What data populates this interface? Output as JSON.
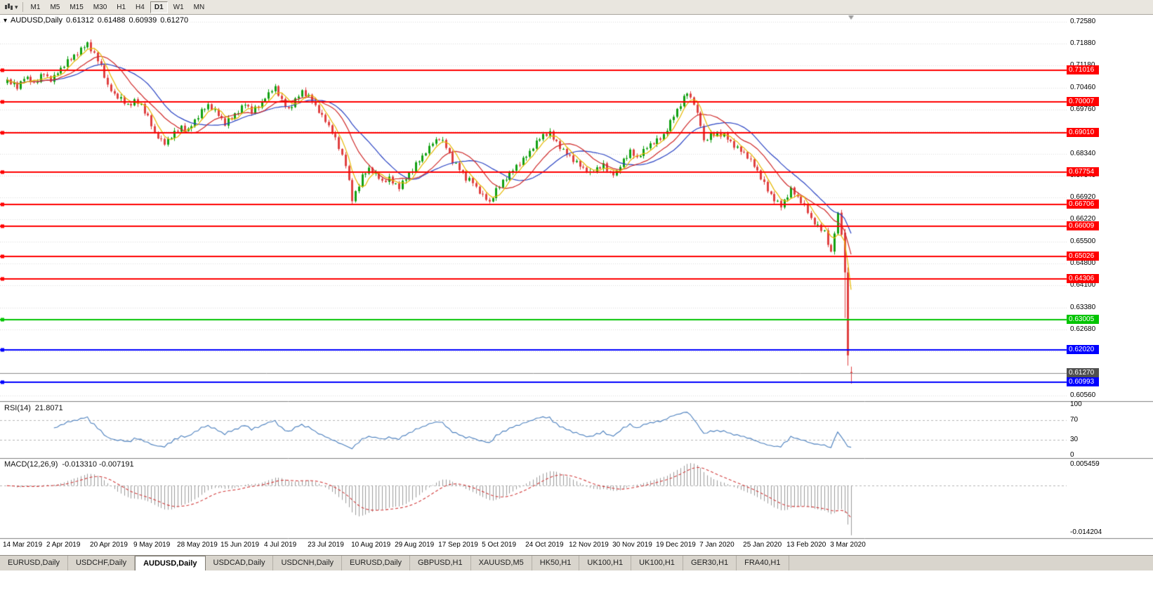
{
  "colors": {
    "bull": "#12A112",
    "bear": "#E04040",
    "grid": "#DADADA",
    "separator": "#7F7F7F",
    "toolbar_bg": "#E9E6DF",
    "tab_bg": "#D9D5CD",
    "tab_active_bg": "#FFFFFF"
  },
  "toolbar": {
    "timeframes": [
      "M1",
      "M5",
      "M15",
      "M30",
      "H1",
      "H4",
      "D1",
      "W1",
      "MN"
    ],
    "active": "D1",
    "chart_type_icon": "chart-type",
    "caret": "▾"
  },
  "chart_data": {
    "type": "candlestick",
    "symbol": "AUDUSD",
    "timeframe": "Daily",
    "title": {
      "marker": "▾",
      "symbol": "AUDUSD,Daily",
      "open": "0.61312",
      "high": "0.61488",
      "low": "0.60939",
      "close": "0.61270"
    },
    "n": 253,
    "bars_per_label": 13,
    "y_ticks": [
      "0.72580",
      "0.71880",
      "0.71180",
      "0.70460",
      "0.69760",
      "0.69060",
      "0.68340",
      "0.67640",
      "0.66920",
      "0.66220",
      "0.65500",
      "0.64800",
      "0.64100",
      "0.63380",
      "0.62680",
      "0.61980",
      "0.61270",
      "0.60560"
    ],
    "x_labels": [
      "14 Mar 2019",
      "2 Apr 2019",
      "20 Apr 2019",
      "9 May 2019",
      "28 May 2019",
      "15 Jun 2019",
      "4 Jul 2019",
      "23 Jul 2019",
      "10 Aug 2019",
      "29 Aug 2019",
      "17 Sep 2019",
      "5 Oct 2019",
      "24 Oct 2019",
      "12 Nov 2019",
      "30 Nov 2019",
      "19 Dec 2019",
      "7 Jan 2020",
      "25 Jan 2020",
      "13 Feb 2020",
      "3 Mar 2020"
    ],
    "close_anchors": [
      [
        0,
        0.7068
      ],
      [
        3,
        0.7048
      ],
      [
        5,
        0.7082
      ],
      [
        8,
        0.7058
      ],
      [
        11,
        0.7092
      ],
      [
        13,
        0.7072
      ],
      [
        16,
        0.7105
      ],
      [
        19,
        0.7142
      ],
      [
        22,
        0.7168
      ],
      [
        24,
        0.7186
      ],
      [
        26,
        0.715
      ],
      [
        28,
        0.7118
      ],
      [
        30,
        0.7052
      ],
      [
        32,
        0.7022
      ],
      [
        34,
        0.7008
      ],
      [
        36,
        0.6992
      ],
      [
        38,
        0.7002
      ],
      [
        40,
        0.6988
      ],
      [
        42,
        0.6948
      ],
      [
        44,
        0.6902
      ],
      [
        47,
        0.6865
      ],
      [
        49,
        0.6888
      ],
      [
        52,
        0.6922
      ],
      [
        54,
        0.6908
      ],
      [
        56,
        0.6938
      ],
      [
        58,
        0.6968
      ],
      [
        60,
        0.6992
      ],
      [
        62,
        0.6972
      ],
      [
        65,
        0.6928
      ],
      [
        67,
        0.6952
      ],
      [
        71,
        0.6992
      ],
      [
        73,
        0.6968
      ],
      [
        75,
        0.6985
      ],
      [
        77,
        0.7018
      ],
      [
        80,
        0.7046
      ],
      [
        82,
        0.7002
      ],
      [
        84,
        0.6978
      ],
      [
        88,
        0.7032
      ],
      [
        91,
        0.7006
      ],
      [
        93,
        0.6972
      ],
      [
        95,
        0.6938
      ],
      [
        97,
        0.6902
      ],
      [
        99,
        0.6855
      ],
      [
        101,
        0.6802
      ],
      [
        103,
        0.6682
      ],
      [
        106,
        0.6758
      ],
      [
        108,
        0.6788
      ],
      [
        110,
        0.6768
      ],
      [
        112,
        0.6742
      ],
      [
        114,
        0.6752
      ],
      [
        117,
        0.6728
      ],
      [
        119,
        0.6752
      ],
      [
        121,
        0.6782
      ],
      [
        123,
        0.6812
      ],
      [
        125,
        0.6842
      ],
      [
        127,
        0.6868
      ],
      [
        129,
        0.6882
      ],
      [
        131,
        0.6858
      ],
      [
        133,
        0.6812
      ],
      [
        135,
        0.6782
      ],
      [
        137,
        0.6752
      ],
      [
        139,
        0.6742
      ],
      [
        141,
        0.6712
      ],
      [
        144,
        0.6675
      ],
      [
        146,
        0.6715
      ],
      [
        148,
        0.6748
      ],
      [
        150,
        0.6768
      ],
      [
        152,
        0.6792
      ],
      [
        154,
        0.6812
      ],
      [
        156,
        0.6842
      ],
      [
        158,
        0.6872
      ],
      [
        160,
        0.6892
      ],
      [
        162,
        0.6898
      ],
      [
        164,
        0.6872
      ],
      [
        166,
        0.6842
      ],
      [
        168,
        0.6822
      ],
      [
        170,
        0.6802
      ],
      [
        172,
        0.6788
      ],
      [
        174,
        0.6772
      ],
      [
        176,
        0.6785
      ],
      [
        178,
        0.6795
      ],
      [
        180,
        0.6772
      ],
      [
        182,
        0.6772
      ],
      [
        184,
        0.6812
      ],
      [
        186,
        0.6838
      ],
      [
        188,
        0.6822
      ],
      [
        190,
        0.6845
      ],
      [
        192,
        0.6862
      ],
      [
        194,
        0.6875
      ],
      [
        196,
        0.6895
      ],
      [
        198,
        0.6935
      ],
      [
        200,
        0.6972
      ],
      [
        203,
        0.703
      ],
      [
        205,
        0.6998
      ],
      [
        207,
        0.6925
      ],
      [
        208,
        0.6872
      ],
      [
        210,
        0.6892
      ],
      [
        212,
        0.6902
      ],
      [
        214,
        0.6892
      ],
      [
        216,
        0.6868
      ],
      [
        218,
        0.6848
      ],
      [
        220,
        0.6838
      ],
      [
        222,
        0.6812
      ],
      [
        224,
        0.6775
      ],
      [
        226,
        0.6735
      ],
      [
        228,
        0.6702
      ],
      [
        231,
        0.6662
      ],
      [
        233,
        0.6698
      ],
      [
        234,
        0.6716
      ],
      [
        236,
        0.6695
      ],
      [
        238,
        0.6668
      ],
      [
        240,
        0.6622
      ],
      [
        242,
        0.6598
      ],
      [
        244,
        0.6585
      ],
      [
        246,
        0.6512
      ],
      [
        247,
        0.6578
      ],
      [
        248,
        0.6638
      ],
      [
        249,
        0.6578
      ],
      [
        250,
        0.6452
      ],
      [
        251,
        0.6185
      ],
      [
        252,
        0.6127
      ]
    ],
    "wiggle": [
      0.0005,
      -0.0004,
      0.0008,
      -0.0006,
      0.0002,
      -0.0008,
      0.0007,
      -0.0001,
      0.0006,
      -0.0005,
      0.0009,
      -0.0003,
      0.0001,
      -0.0007,
      0.0004,
      -0.0002
    ],
    "wick": [
      0.001,
      0.0005,
      0.0014,
      0.0007,
      0.0003,
      0.0012,
      0.0006,
      0.0009,
      0.0004,
      0.0013,
      0.0008,
      0.0005,
      0.0011,
      0.0004,
      0.0014,
      0.0007
    ],
    "overrides": [
      {
        "i": 250,
        "o": 0.658,
        "h": 0.6592,
        "l": 0.6305,
        "c": 0.6452
      },
      {
        "i": 251,
        "o": 0.6452,
        "h": 0.6468,
        "l": 0.6152,
        "c": 0.6185
      },
      {
        "i": 252,
        "o": 0.61312,
        "h": 0.61488,
        "l": 0.60939,
        "c": 0.6127
      }
    ],
    "moving_averages": [
      {
        "period": 21,
        "color": "#2B44C4"
      },
      {
        "period": 13,
        "color": "#D02A2A"
      },
      {
        "period": 5,
        "color": "#E6B800"
      }
    ],
    "levels": [
      {
        "label": "0.71016",
        "value": 0.71016,
        "color": "#FF0000"
      },
      {
        "label": "0.70007",
        "value": 0.70007,
        "color": "#FF0000"
      },
      {
        "label": "0.69010",
        "value": 0.6901,
        "color": "#FF0000"
      },
      {
        "label": "0.67754",
        "value": 0.67754,
        "color": "#FF0000"
      },
      {
        "label": "0.66706",
        "value": 0.66706,
        "color": "#FF0000"
      },
      {
        "label": "0.66009",
        "value": 0.66009,
        "color": "#FF0000"
      },
      {
        "label": "0.65026",
        "value": 0.65026,
        "color": "#FF0000"
      },
      {
        "label": "0.64306",
        "value": 0.64306,
        "color": "#FF0000"
      },
      {
        "label": "0.63005",
        "value": 0.63005,
        "color": "#00C400"
      },
      {
        "label": "0.62020",
        "value": 0.6202,
        "color": "#0000FF"
      },
      {
        "label": "0.60993",
        "value": 0.60993,
        "color": "#0000FF"
      }
    ],
    "current_price": {
      "label": "0.61270",
      "value": 0.6127,
      "tag_color": "#4F4F4F",
      "line_color": "#8C8C8C"
    }
  },
  "rsi": {
    "label": "RSI(14)",
    "value": "21.8071",
    "period": 14,
    "levels": [
      70,
      30
    ],
    "ticks": [
      "100",
      "70",
      "30",
      "0"
    ],
    "color": "#4A7FBE"
  },
  "macd": {
    "label": "MACD(12,26,9)",
    "value_main": "-0.013310",
    "value_signal": "-0.007191",
    "fast": 12,
    "slow": 26,
    "signal": 9,
    "ticks": [
      "0.005459",
      "-0.014204"
    ],
    "hist_color": "#9C9C9C",
    "signal_color": "#D23B3B"
  },
  "tabs": {
    "items": [
      "EURUSD,Daily",
      "USDCHF,Daily",
      "AUDUSD,Daily",
      "USDCAD,Daily",
      "USDCNH,Daily",
      "EURUSD,Daily",
      "GBPUSD,H1",
      "XAUUSD,M5",
      "HK50,H1",
      "UK100,H1",
      "UK100,H1",
      "GER30,H1",
      "FRA40,H1"
    ],
    "active_index": 2
  }
}
